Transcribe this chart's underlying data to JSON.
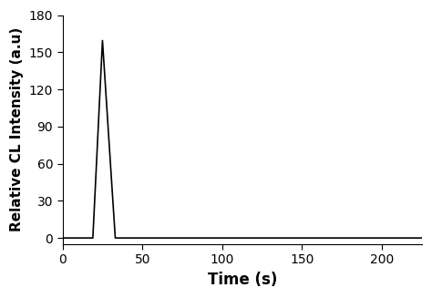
{
  "xlabel": "Time (s)",
  "ylabel": "Relative CL Intensity (a.u)",
  "xlim": [
    0,
    225
  ],
  "ylim": [
    -5,
    180
  ],
  "xticks": [
    0,
    50,
    100,
    150,
    200
  ],
  "yticks": [
    0,
    30,
    60,
    90,
    120,
    150,
    180
  ],
  "peak_x": 25,
  "peak_y": 160,
  "rise_start_x": 19,
  "fall_end_x": 33,
  "baseline": 0,
  "line_color": "#000000",
  "line_width": 1.2,
  "background_color": "#ffffff",
  "xlabel_fontsize": 12,
  "ylabel_fontsize": 11,
  "tick_fontsize": 10,
  "figsize": [
    4.74,
    3.27
  ],
  "dpi": 100
}
